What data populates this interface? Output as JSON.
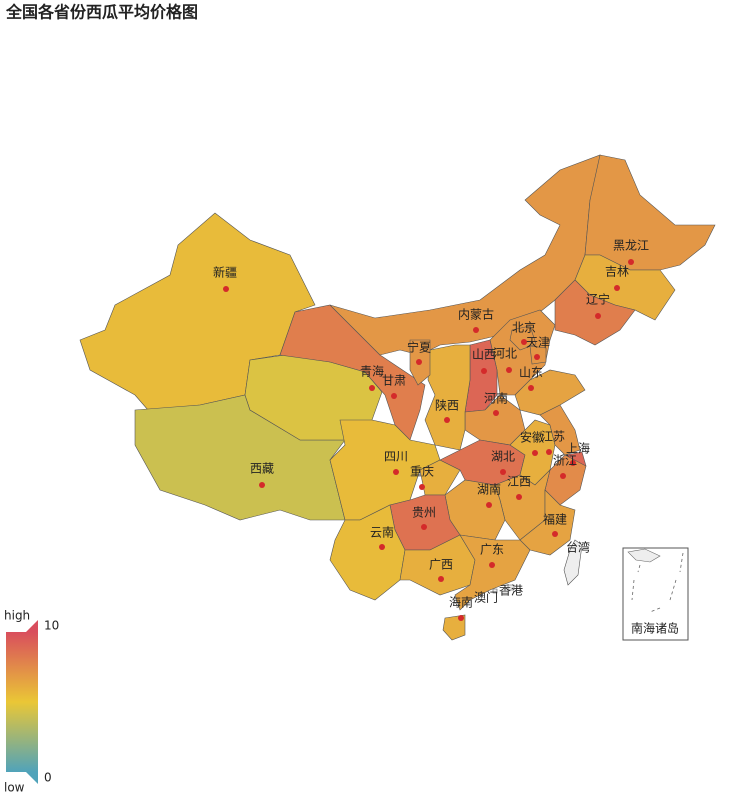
{
  "chart_data": {
    "type": "map",
    "title": "全国各省份西瓜平均价格图",
    "regions": [
      {
        "name": "新疆",
        "value": 5.5
      },
      {
        "name": "西藏",
        "value": 4
      },
      {
        "name": "青海",
        "value": 4.5
      },
      {
        "name": "甘肃",
        "value": 8
      },
      {
        "name": "内蒙古",
        "value": 7
      },
      {
        "name": "黑龙江",
        "value": 7
      },
      {
        "name": "吉林",
        "value": 6
      },
      {
        "name": "辽宁",
        "value": 8
      },
      {
        "name": "河北",
        "value": 7
      },
      {
        "name": "北京",
        "value": 7
      },
      {
        "name": "天津",
        "value": 7
      },
      {
        "name": "山西",
        "value": 9
      },
      {
        "name": "山东",
        "value": 6.5
      },
      {
        "name": "河南",
        "value": 7
      },
      {
        "name": "陕西",
        "value": 6
      },
      {
        "name": "宁夏",
        "value": 7
      },
      {
        "name": "四川",
        "value": 5.5
      },
      {
        "name": "重庆",
        "value": 6
      },
      {
        "name": "湖北",
        "value": 8.5
      },
      {
        "name": "安徽",
        "value": 6
      },
      {
        "name": "江苏",
        "value": 7
      },
      {
        "name": "上海",
        "value": 9
      },
      {
        "name": "浙江",
        "value": 7.5
      },
      {
        "name": "江西",
        "value": 6.5
      },
      {
        "name": "湖南",
        "value": 6.5
      },
      {
        "name": "福建",
        "value": 6.5
      },
      {
        "name": "贵州",
        "value": 8.5
      },
      {
        "name": "云南",
        "value": 5.5
      },
      {
        "name": "广西",
        "value": 6
      },
      {
        "name": "广东",
        "value": 6.5
      },
      {
        "name": "海南",
        "value": 6
      },
      {
        "name": "台湾",
        "value": null
      },
      {
        "name": "香港",
        "value": null
      },
      {
        "name": "澳门",
        "value": null
      }
    ],
    "inset_label": "南海诸岛",
    "visual_map": {
      "min": 0,
      "max": 10,
      "high_label": "high",
      "low_label": "low",
      "colors": [
        "#50a3ba",
        "#eac736",
        "#d94e5d"
      ],
      "empty_color": "#eeeeee",
      "dot_color": "#d42a2a"
    }
  }
}
